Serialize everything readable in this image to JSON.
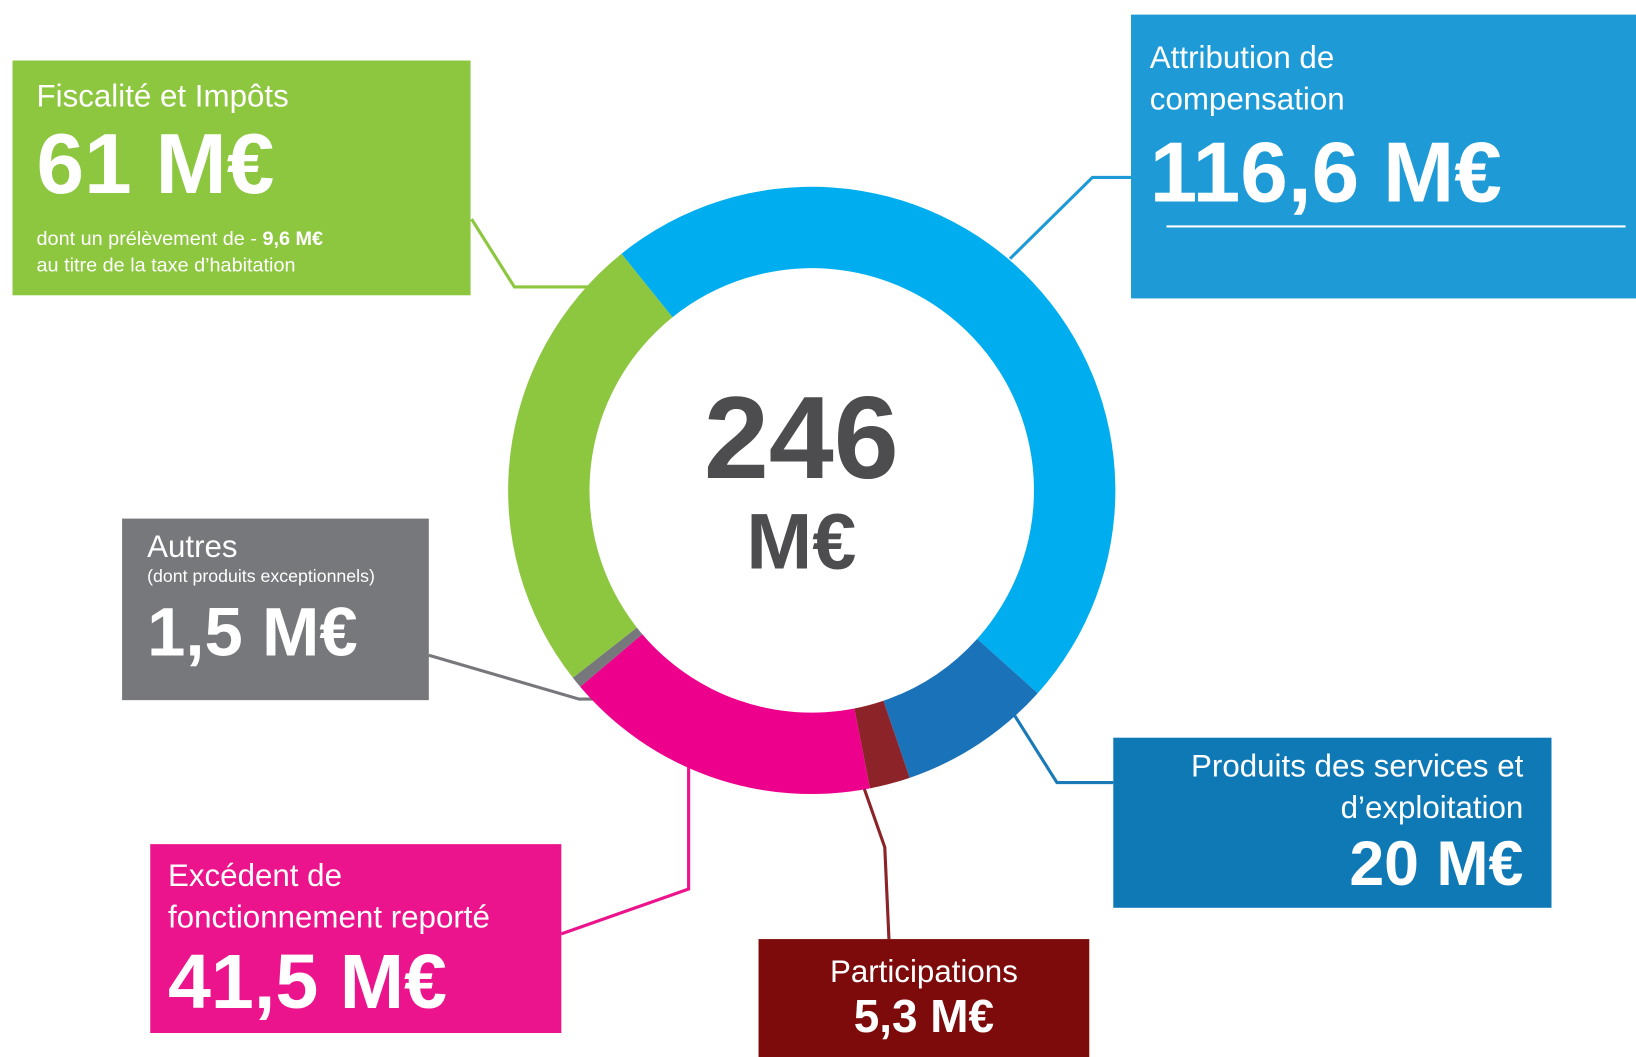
{
  "chart_data": {
    "type": "donut",
    "categories": [
      "Attribution de compensation",
      "Produits des services et d’exploitation",
      "Participations",
      "Excédent de fonctionnement reporté",
      "Autres",
      "Fiscalité et Impôts"
    ],
    "values": [
      116.6,
      20,
      5.3,
      41.5,
      1.5,
      61
    ],
    "value_labels": [
      "116,6 M€",
      "20 M€",
      "5,3 M€",
      "41,5 M€",
      "1,5 M€",
      "61 M€"
    ],
    "colors": [
      "#00aeef",
      "#1a72b9",
      "#8b2328",
      "#ec008c",
      "#77787b",
      "#8dc63f"
    ],
    "total": 246,
    "total_unit": "M€",
    "subtitles": {
      "autres": "(dont produits exceptionnels)"
    },
    "note": [
      "dont un prélèvement de -",
      "9,6 M€",
      "au titre de la taxe d’habitation"
    ]
  }
}
